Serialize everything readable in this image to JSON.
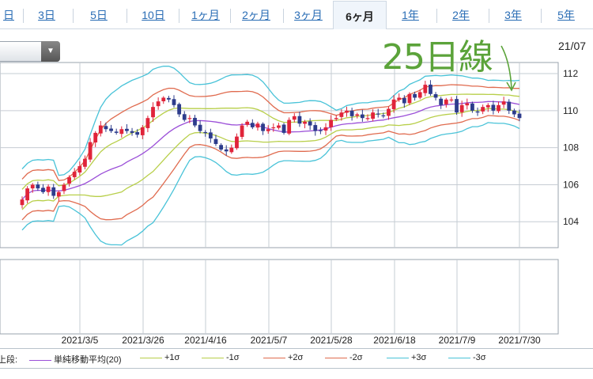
{
  "tabs": [
    {
      "label": "日"
    },
    {
      "label": "3日"
    },
    {
      "label": "5日"
    },
    {
      "label": "10日"
    },
    {
      "label": "1ヶ月"
    },
    {
      "label": "2ヶ月"
    },
    {
      "label": "3ヶ月"
    },
    {
      "label": "6ヶ月",
      "active": true
    },
    {
      "label": "1年"
    },
    {
      "label": "2年"
    },
    {
      "label": "3年"
    },
    {
      "label": "5年"
    }
  ],
  "date_label": "21/07",
  "annotation": "25日線",
  "legend": {
    "prefix": "上段:",
    "items": [
      {
        "label": "単純移動平均(20)",
        "color": "#9b4fd8"
      },
      {
        "label": "+1σ",
        "color": "#b8cf4a"
      },
      {
        "label": "-1σ",
        "color": "#b8cf4a"
      },
      {
        "label": "+2σ",
        "color": "#e06b4f"
      },
      {
        "label": "-2σ",
        "color": "#e06b4f"
      },
      {
        "label": "+3σ",
        "color": "#49c3d8"
      },
      {
        "label": "-3σ",
        "color": "#49c3d8"
      }
    ]
  },
  "chart_data": {
    "type": "line",
    "subtype": "candlestick with Bollinger bands",
    "x_tick_labels": [
      "2021/3/5",
      "2021/3/26",
      "2021/4/16",
      "2021/5/7",
      "2021/5/28",
      "2021/6/18",
      "2021/7/9",
      "2021/7/30"
    ],
    "y_tick_labels": [
      "112",
      "110",
      "108",
      "106",
      "104"
    ],
    "ylim": [
      102.6,
      112.6
    ],
    "grid": true,
    "close": [
      105.2,
      105.8,
      106.0,
      105.8,
      105.6,
      105.9,
      105.4,
      105.6,
      106.0,
      106.4,
      106.7,
      107.0,
      107.4,
      108.3,
      108.8,
      109.2,
      109.0,
      108.9,
      108.8,
      109.0,
      108.9,
      108.8,
      108.7,
      109.1,
      109.6,
      110.2,
      110.5,
      110.7,
      110.6,
      110.3,
      109.8,
      109.5,
      109.6,
      109.2,
      108.9,
      108.8,
      108.5,
      108.2,
      107.9,
      107.8,
      108.0,
      108.6,
      109.2,
      109.4,
      109.1,
      109.3,
      108.9,
      109.0,
      109.1,
      109.2,
      108.8,
      109.5,
      109.7,
      109.3,
      109.4,
      109.2,
      108.9,
      108.9,
      109.1,
      109.5,
      109.6,
      109.9,
      110.0,
      109.7,
      109.8,
      109.6,
      109.6,
      109.9,
      109.8,
      109.7,
      110.1,
      110.6,
      110.7,
      110.4,
      110.9,
      110.7,
      111.0,
      111.4,
      110.9,
      110.7,
      110.3,
      110.6,
      110.6,
      109.9,
      110.3,
      110.4,
      110.0,
      109.9,
      110.2,
      110.3,
      110.0,
      110.3,
      110.5,
      110.0,
      109.8,
      109.6
    ]
  }
}
